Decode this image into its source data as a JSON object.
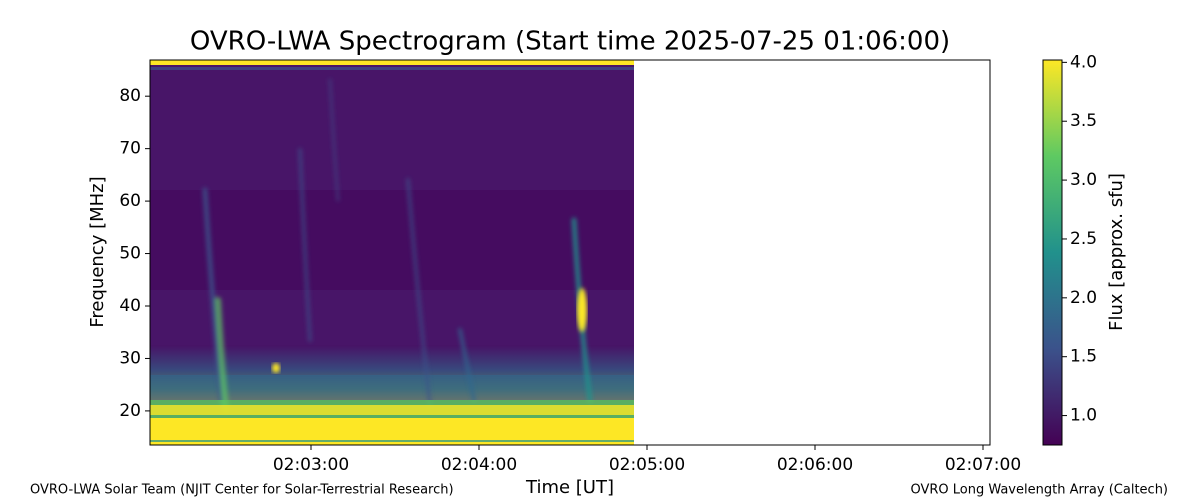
{
  "chart_data": {
    "type": "spectrogram",
    "title": "OVRO-LWA Spectrogram (Start time 2025-07-25 01:06:00)",
    "x_label": "Time [UT]",
    "y_label": "Frequency [MHz]",
    "colorbar_label": "Flux [approx. sfu]",
    "xlim": [
      7322.5,
      7622.5
    ],
    "xticks": [
      {
        "value": 7380,
        "label": "02:03:00"
      },
      {
        "value": 7440,
        "label": "02:04:00"
      },
      {
        "value": 7500,
        "label": "02:05:00"
      },
      {
        "value": 7560,
        "label": "02:06:00"
      },
      {
        "value": 7620,
        "label": "02:07:00"
      }
    ],
    "ylim": [
      13.5,
      86.9
    ],
    "yticks": [
      20,
      30,
      40,
      50,
      60,
      70,
      80
    ],
    "clim": [
      0.75,
      4.02
    ],
    "cticks": [
      {
        "value": 1,
        "label": "1.0"
      },
      {
        "value": 1.5,
        "label": "1.5"
      },
      {
        "value": 2,
        "label": "2.0"
      },
      {
        "value": 2.5,
        "label": "2.5"
      },
      {
        "value": 3,
        "label": "3.0"
      },
      {
        "value": 3.5,
        "label": "3.5"
      },
      {
        "value": 4,
        "label": "4.0"
      }
    ],
    "colormap": [
      "#440154",
      "#3b528b",
      "#21918c",
      "#5ec962",
      "#fde725"
    ],
    "footnote_left": "OVRO-LWA Solar Team (NJIT Center for Solar-Terrestrial Research)",
    "footnote_right": "OVRO Long Wavelength Array (Caltech)"
  }
}
